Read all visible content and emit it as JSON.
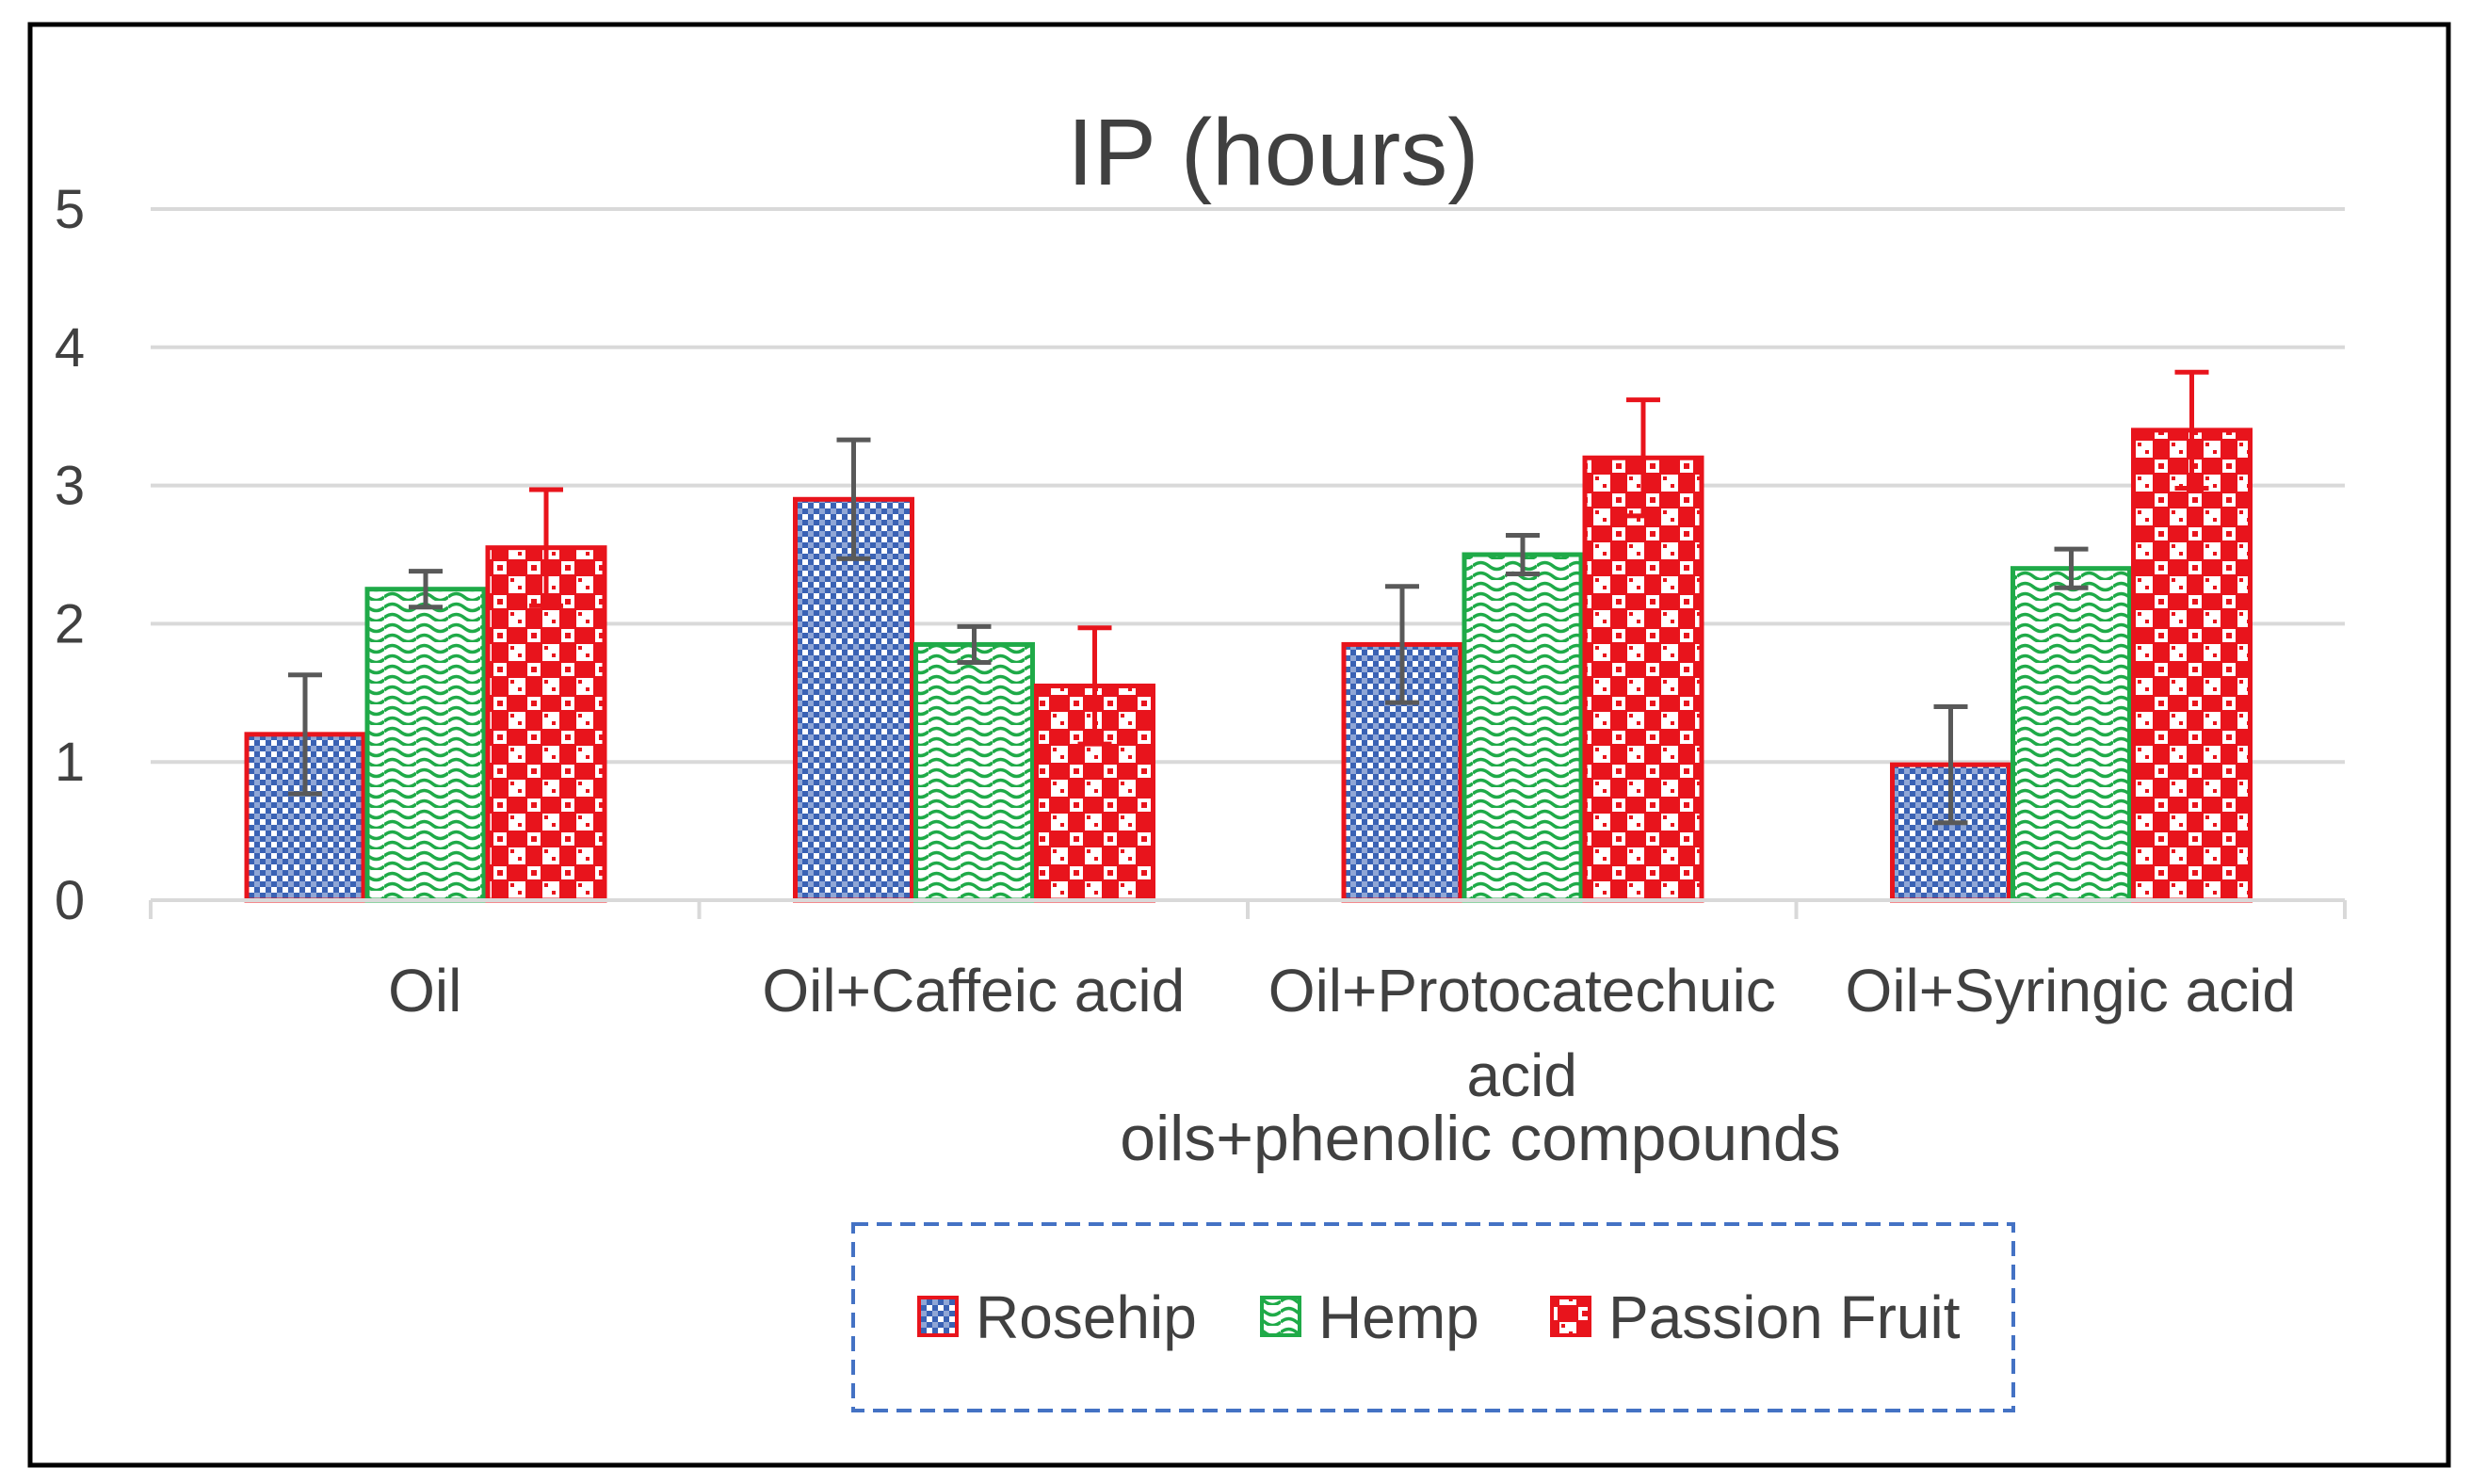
{
  "chart_data": {
    "type": "bar",
    "title": "IP (hours)",
    "xlabel": "oils+phenolic compounds",
    "ylabel": "",
    "ylim": [
      0,
      5
    ],
    "yticks": [
      0,
      1,
      2,
      3,
      4,
      5
    ],
    "grid": true,
    "legend_position": "bottom",
    "categories": [
      [
        "Oil"
      ],
      [
        "Oil+Caffeic acid"
      ],
      [
        "Oil+Protocatechuic",
        "acid"
      ],
      [
        "Oil+Syringic acid"
      ]
    ],
    "series": [
      {
        "name": "Rosehip",
        "values": [
          1.2,
          2.9,
          1.85,
          0.98
        ],
        "errors": [
          0.43,
          0.43,
          0.42,
          0.42
        ],
        "border": "#e8141c",
        "pattern_color": "#3a62b4",
        "error_color": "#595959"
      },
      {
        "name": "Hemp",
        "values": [
          2.25,
          1.85,
          2.5,
          2.4
        ],
        "errors": [
          0.13,
          0.13,
          0.14,
          0.14
        ],
        "border": "#1faa48",
        "pattern_color": "#1faa48",
        "error_color": "#595959"
      },
      {
        "name": "Passion Fruit",
        "values": [
          2.55,
          1.55,
          3.2,
          3.4
        ],
        "errors": [
          0.42,
          0.42,
          0.42,
          0.42
        ],
        "border": "#e8141c",
        "pattern_color": "#e8141c",
        "error_color": "#e8141c"
      }
    ]
  }
}
